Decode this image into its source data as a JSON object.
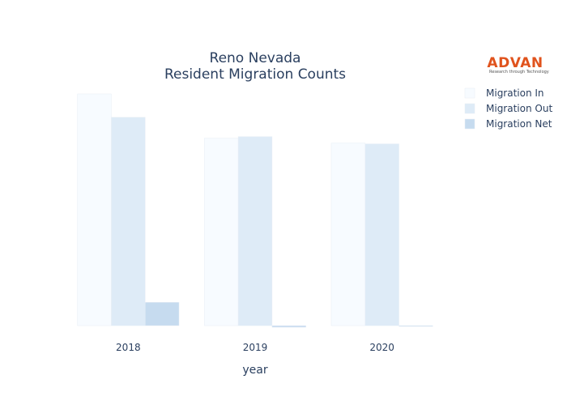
{
  "chart_data": {
    "type": "bar",
    "title_lines": [
      "Reno Nevada",
      "Resident Migration Counts"
    ],
    "xlabel": "year",
    "ylabel": "",
    "categories": [
      "2018",
      "2019",
      "2020"
    ],
    "series": [
      {
        "name": "Migration In",
        "values": [
          14400,
          11650,
          11350
        ]
      },
      {
        "name": "Migration Out",
        "values": [
          12950,
          11750,
          11300
        ]
      },
      {
        "name": "Migration Net",
        "values": [
          1450,
          -100,
          -50
        ]
      }
    ],
    "ylim": [
      -150,
      14400
    ],
    "grid": false,
    "legend_position": "top-right",
    "colors": {
      "Migration In": "#f7fbff",
      "Migration Out": "#deebf7",
      "Migration Net": "#c6dbef",
      "text": "#2a3f5f"
    }
  },
  "logo": {
    "name": "ADVAN",
    "tagline": "Research through Technology",
    "color": "#e0531d"
  }
}
